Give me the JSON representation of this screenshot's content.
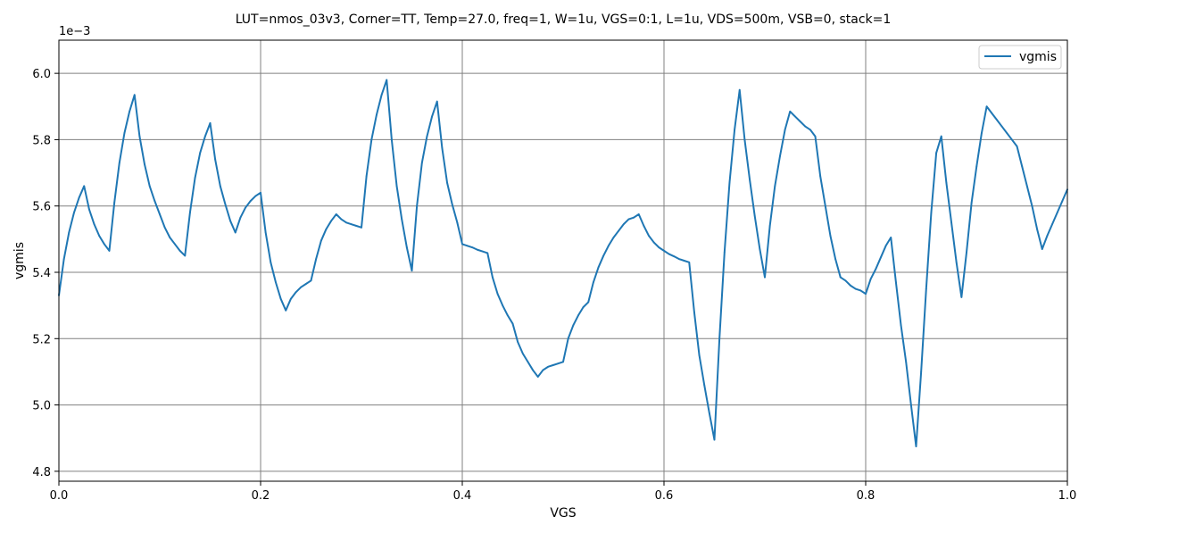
{
  "chart_data": {
    "type": "line",
    "title": "LUT=nmos_03v3, Corner=TT, Temp=27.0, freq=1, W=1u, VGS=0:1, L=1u, VDS=500m, VSB=0, stack=1",
    "xlabel": "VGS",
    "ylabel": "vgmis",
    "y_offset_label": "1e−3",
    "xlim": [
      0.0,
      1.0
    ],
    "ylim": [
      4.77,
      6.1
    ],
    "x_ticks": [
      0.0,
      0.2,
      0.4,
      0.6,
      0.8,
      1.0
    ],
    "x_tick_labels": [
      "0.0",
      "0.2",
      "0.4",
      "0.6",
      "0.8",
      "1.0"
    ],
    "y_ticks": [
      4.8,
      5.0,
      5.2,
      5.4,
      5.6,
      5.8,
      6.0
    ],
    "y_tick_labels": [
      "4.8",
      "5.0",
      "5.2",
      "5.4",
      "5.6",
      "5.8",
      "6.0"
    ],
    "grid": true,
    "legend_position": "upper right",
    "line_color": "#1f77b4",
    "grid_color": "#808080",
    "series": [
      {
        "name": "vgmis",
        "x": [
          0.0,
          0.005,
          0.01,
          0.015,
          0.02,
          0.025,
          0.03,
          0.035,
          0.04,
          0.045,
          0.05,
          0.055,
          0.06,
          0.065,
          0.07,
          0.075,
          0.08,
          0.085,
          0.09,
          0.095,
          0.1,
          0.105,
          0.11,
          0.115,
          0.12,
          0.125,
          0.13,
          0.135,
          0.14,
          0.145,
          0.15,
          0.155,
          0.16,
          0.165,
          0.17,
          0.175,
          0.18,
          0.185,
          0.19,
          0.195,
          0.2,
          0.205,
          0.21,
          0.215,
          0.22,
          0.225,
          0.23,
          0.235,
          0.24,
          0.245,
          0.25,
          0.255,
          0.26,
          0.265,
          0.27,
          0.275,
          0.28,
          0.285,
          0.29,
          0.295,
          0.3,
          0.305,
          0.31,
          0.315,
          0.32,
          0.325,
          0.33,
          0.335,
          0.34,
          0.345,
          0.35,
          0.355,
          0.36,
          0.365,
          0.37,
          0.375,
          0.38,
          0.385,
          0.39,
          0.395,
          0.4,
          0.405,
          0.41,
          0.415,
          0.42,
          0.425,
          0.43,
          0.435,
          0.44,
          0.445,
          0.45,
          0.455,
          0.46,
          0.465,
          0.47,
          0.475,
          0.48,
          0.485,
          0.49,
          0.495,
          0.5,
          0.505,
          0.51,
          0.515,
          0.52,
          0.525,
          0.53,
          0.535,
          0.54,
          0.545,
          0.55,
          0.555,
          0.56,
          0.565,
          0.57,
          0.575,
          0.58,
          0.585,
          0.59,
          0.595,
          0.6,
          0.605,
          0.61,
          0.615,
          0.62,
          0.625,
          0.63,
          0.635,
          0.64,
          0.645,
          0.65,
          0.655,
          0.66,
          0.665,
          0.67,
          0.675,
          0.68,
          0.685,
          0.69,
          0.695,
          0.7,
          0.705,
          0.71,
          0.715,
          0.72,
          0.725,
          0.73,
          0.735,
          0.74,
          0.745,
          0.75,
          0.755,
          0.76,
          0.765,
          0.77,
          0.775,
          0.78,
          0.785,
          0.79,
          0.795,
          0.8,
          0.805,
          0.81,
          0.815,
          0.82,
          0.825,
          0.83,
          0.835,
          0.84,
          0.845,
          0.85,
          0.855,
          0.86,
          0.865,
          0.87,
          0.875,
          0.88,
          0.885,
          0.89,
          0.895,
          0.9,
          0.905,
          0.91,
          0.915,
          0.92,
          0.925,
          0.93,
          0.935,
          0.94,
          0.945,
          0.95,
          0.955,
          0.96,
          0.965,
          0.97,
          0.975,
          0.98,
          0.985,
          0.99,
          0.995,
          1.0
        ],
        "values": [
          5.33,
          5.44,
          5.52,
          5.58,
          5.625,
          5.66,
          5.59,
          5.545,
          5.51,
          5.485,
          5.465,
          5.61,
          5.73,
          5.82,
          5.885,
          5.935,
          5.81,
          5.725,
          5.66,
          5.615,
          5.575,
          5.535,
          5.505,
          5.485,
          5.465,
          5.45,
          5.58,
          5.685,
          5.76,
          5.81,
          5.85,
          5.74,
          5.66,
          5.605,
          5.555,
          5.52,
          5.565,
          5.595,
          5.615,
          5.63,
          5.64,
          5.52,
          5.43,
          5.37,
          5.32,
          5.285,
          5.32,
          5.34,
          5.355,
          5.365,
          5.375,
          5.44,
          5.495,
          5.53,
          5.555,
          5.575,
          5.56,
          5.55,
          5.545,
          5.54,
          5.535,
          5.69,
          5.8,
          5.875,
          5.935,
          5.98,
          5.8,
          5.66,
          5.56,
          5.475,
          5.405,
          5.6,
          5.73,
          5.81,
          5.87,
          5.915,
          5.775,
          5.67,
          5.605,
          5.55,
          5.485,
          5.48,
          5.475,
          5.468,
          5.463,
          5.458,
          5.385,
          5.335,
          5.3,
          5.27,
          5.245,
          5.19,
          5.155,
          5.13,
          5.105,
          5.085,
          5.105,
          5.115,
          5.12,
          5.125,
          5.13,
          5.2,
          5.24,
          5.27,
          5.295,
          5.31,
          5.37,
          5.415,
          5.45,
          5.48,
          5.505,
          5.525,
          5.545,
          5.56,
          5.565,
          5.575,
          5.54,
          5.51,
          5.49,
          5.475,
          5.465,
          5.455,
          5.448,
          5.44,
          5.435,
          5.43,
          5.28,
          5.15,
          5.06,
          4.975,
          4.895,
          5.2,
          5.46,
          5.67,
          5.83,
          5.95,
          5.8,
          5.68,
          5.57,
          5.47,
          5.385,
          5.54,
          5.66,
          5.75,
          5.83,
          5.885,
          5.87,
          5.855,
          5.84,
          5.83,
          5.81,
          5.69,
          5.6,
          5.51,
          5.44,
          5.385,
          5.375,
          5.36,
          5.35,
          5.345,
          5.335,
          5.38,
          5.41,
          5.445,
          5.48,
          5.505,
          5.37,
          5.24,
          5.13,
          5.0,
          4.875,
          5.1,
          5.35,
          5.58,
          5.76,
          5.81,
          5.67,
          5.55,
          5.43,
          5.325,
          5.46,
          5.61,
          5.72,
          5.82,
          5.9,
          5.88,
          5.86,
          5.84,
          5.82,
          5.8,
          5.78,
          5.72,
          5.66,
          5.6,
          5.53,
          5.47,
          5.51,
          5.545,
          5.58,
          5.615,
          5.65
        ]
      }
    ]
  }
}
